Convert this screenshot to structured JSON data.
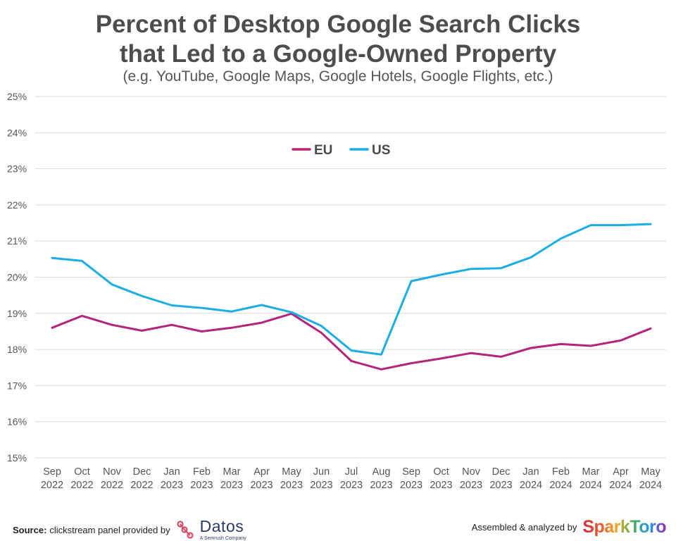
{
  "chart_data": {
    "type": "line",
    "title_line1": "Percent of Desktop Google Search Clicks",
    "title_line2": "that Led to a Google-Owned Property",
    "subtitle": "(e.g. YouTube, Google Maps, Google Hotels, Google Flights, etc.)",
    "y_ticks": [
      "25%",
      "24%",
      "23%",
      "22%",
      "21%",
      "20%",
      "19%",
      "18%",
      "17%",
      "16%",
      "15%"
    ],
    "ylim": [
      15,
      25
    ],
    "grid": true,
    "legend_placement": "top-center",
    "categories": [
      {
        "month": "Sep",
        "year": "2022"
      },
      {
        "month": "Oct",
        "year": "2022"
      },
      {
        "month": "Nov",
        "year": "2022"
      },
      {
        "month": "Dec",
        "year": "2022"
      },
      {
        "month": "Jan",
        "year": "2023"
      },
      {
        "month": "Feb",
        "year": "2023"
      },
      {
        "month": "Mar",
        "year": "2023"
      },
      {
        "month": "Apr",
        "year": "2023"
      },
      {
        "month": "May",
        "year": "2023"
      },
      {
        "month": "Jun",
        "year": "2023"
      },
      {
        "month": "Jul",
        "year": "2023"
      },
      {
        "month": "Aug",
        "year": "2023"
      },
      {
        "month": "Sep",
        "year": "2023"
      },
      {
        "month": "Oct",
        "year": "2023"
      },
      {
        "month": "Nov",
        "year": "2023"
      },
      {
        "month": "Dec",
        "year": "2023"
      },
      {
        "month": "Jan",
        "year": "2024"
      },
      {
        "month": "Feb",
        "year": "2024"
      },
      {
        "month": "Mar",
        "year": "2024"
      },
      {
        "month": "Apr",
        "year": "2024"
      },
      {
        "month": "May",
        "year": "2024"
      }
    ],
    "series": [
      {
        "name": "EU",
        "color": "#b5247c",
        "values": [
          18.6,
          18.93,
          18.68,
          18.52,
          18.68,
          18.5,
          18.6,
          18.74,
          18.99,
          18.46,
          17.68,
          17.45,
          17.62,
          17.75,
          17.9,
          17.8,
          18.04,
          18.15,
          18.1,
          18.25,
          18.58
        ]
      },
      {
        "name": "US",
        "color": "#1aaee5",
        "values": [
          20.53,
          20.45,
          19.8,
          19.48,
          19.22,
          19.15,
          19.05,
          19.23,
          19.03,
          18.65,
          17.97,
          17.86,
          19.89,
          20.07,
          20.23,
          20.25,
          20.55,
          21.07,
          21.44,
          21.44,
          21.47
        ]
      }
    ]
  },
  "footer": {
    "source_label": "Source:",
    "source_text": "clickstream panel provided by",
    "datos_name": "Datos",
    "datos_sub": "A Semrush Company",
    "assembled_text": "Assembled & analyzed by",
    "sparktoro_name": "SparkToro"
  },
  "colors": {
    "eu": "#b5247c",
    "us": "#1aaee5",
    "grid": "#d9d9d9",
    "datos_dot": "#d94a66"
  }
}
